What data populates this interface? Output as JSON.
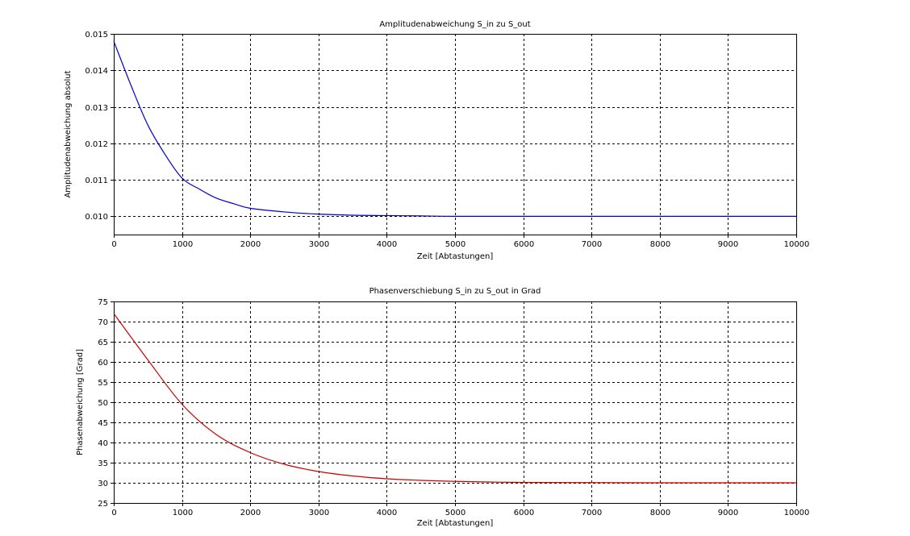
{
  "chart_data": [
    {
      "type": "line",
      "title": "Amplitudenabweichung S_in zu S_out",
      "xlabel": "Zeit [Abtastungen]",
      "ylabel": "Amplitudenabweichung absolut",
      "xlim": [
        0,
        10000
      ],
      "ylim": [
        0.0095,
        0.015
      ],
      "x_ticks": [
        0,
        1000,
        2000,
        3000,
        4000,
        5000,
        6000,
        7000,
        8000,
        9000,
        10000
      ],
      "y_ticks": [
        0.01,
        0.011,
        0.012,
        0.013,
        0.014,
        0.015
      ],
      "x_tick_labels": [
        "0",
        "1000",
        "2000",
        "3000",
        "4000",
        "5000",
        "6000",
        "7000",
        "8000",
        "9000",
        "10000"
      ],
      "y_tick_labels": [
        "0.010",
        "0.011",
        "0.012",
        "0.013",
        "0.014",
        "0.015"
      ],
      "grid": true,
      "series": [
        {
          "color": "#0000cc",
          "x": [
            0,
            250,
            500,
            750,
            1000,
            1250,
            1500,
            1750,
            2000,
            2500,
            3000,
            3500,
            4000,
            4500,
            5000,
            6000,
            7000,
            8000,
            9000,
            10000
          ],
          "y": [
            0.0148,
            0.0136,
            0.0125,
            0.0117,
            0.01105,
            0.01075,
            0.0105,
            0.01035,
            0.01022,
            0.01012,
            0.01006,
            0.01003,
            0.01002,
            0.01001,
            0.01,
            0.01,
            0.01,
            0.01,
            0.01,
            0.01
          ]
        }
      ]
    },
    {
      "type": "line",
      "title": "Phasenverschiebung S_in zu S_out in Grad",
      "xlabel": "Zeit [Abtastungen]",
      "ylabel": "Phasenabweichung [Grad]",
      "xlim": [
        0,
        10000
      ],
      "ylim": [
        25,
        75
      ],
      "x_ticks": [
        0,
        1000,
        2000,
        3000,
        4000,
        5000,
        6000,
        7000,
        8000,
        9000,
        10000
      ],
      "y_ticks": [
        25,
        30,
        35,
        40,
        45,
        50,
        55,
        60,
        65,
        70,
        75
      ],
      "x_tick_labels": [
        "0",
        "1000",
        "2000",
        "3000",
        "4000",
        "5000",
        "6000",
        "7000",
        "8000",
        "9000",
        "10000"
      ],
      "y_tick_labels": [
        "25",
        "30",
        "35",
        "40",
        "45",
        "50",
        "55",
        "60",
        "65",
        "70",
        "75"
      ],
      "grid": true,
      "series": [
        {
          "color": "#cc0000",
          "x": [
            0,
            500,
            1000,
            1500,
            2000,
            2500,
            3000,
            3500,
            4000,
            4500,
            5000,
            5500,
            6000,
            7000,
            8000,
            9000,
            10000
          ],
          "y": [
            72,
            60.5,
            49.5,
            42,
            37.5,
            34.6,
            32.8,
            31.7,
            31.0,
            30.6,
            30.35,
            30.2,
            30.1,
            30.05,
            30.0,
            30.0,
            30.0
          ]
        }
      ]
    }
  ]
}
